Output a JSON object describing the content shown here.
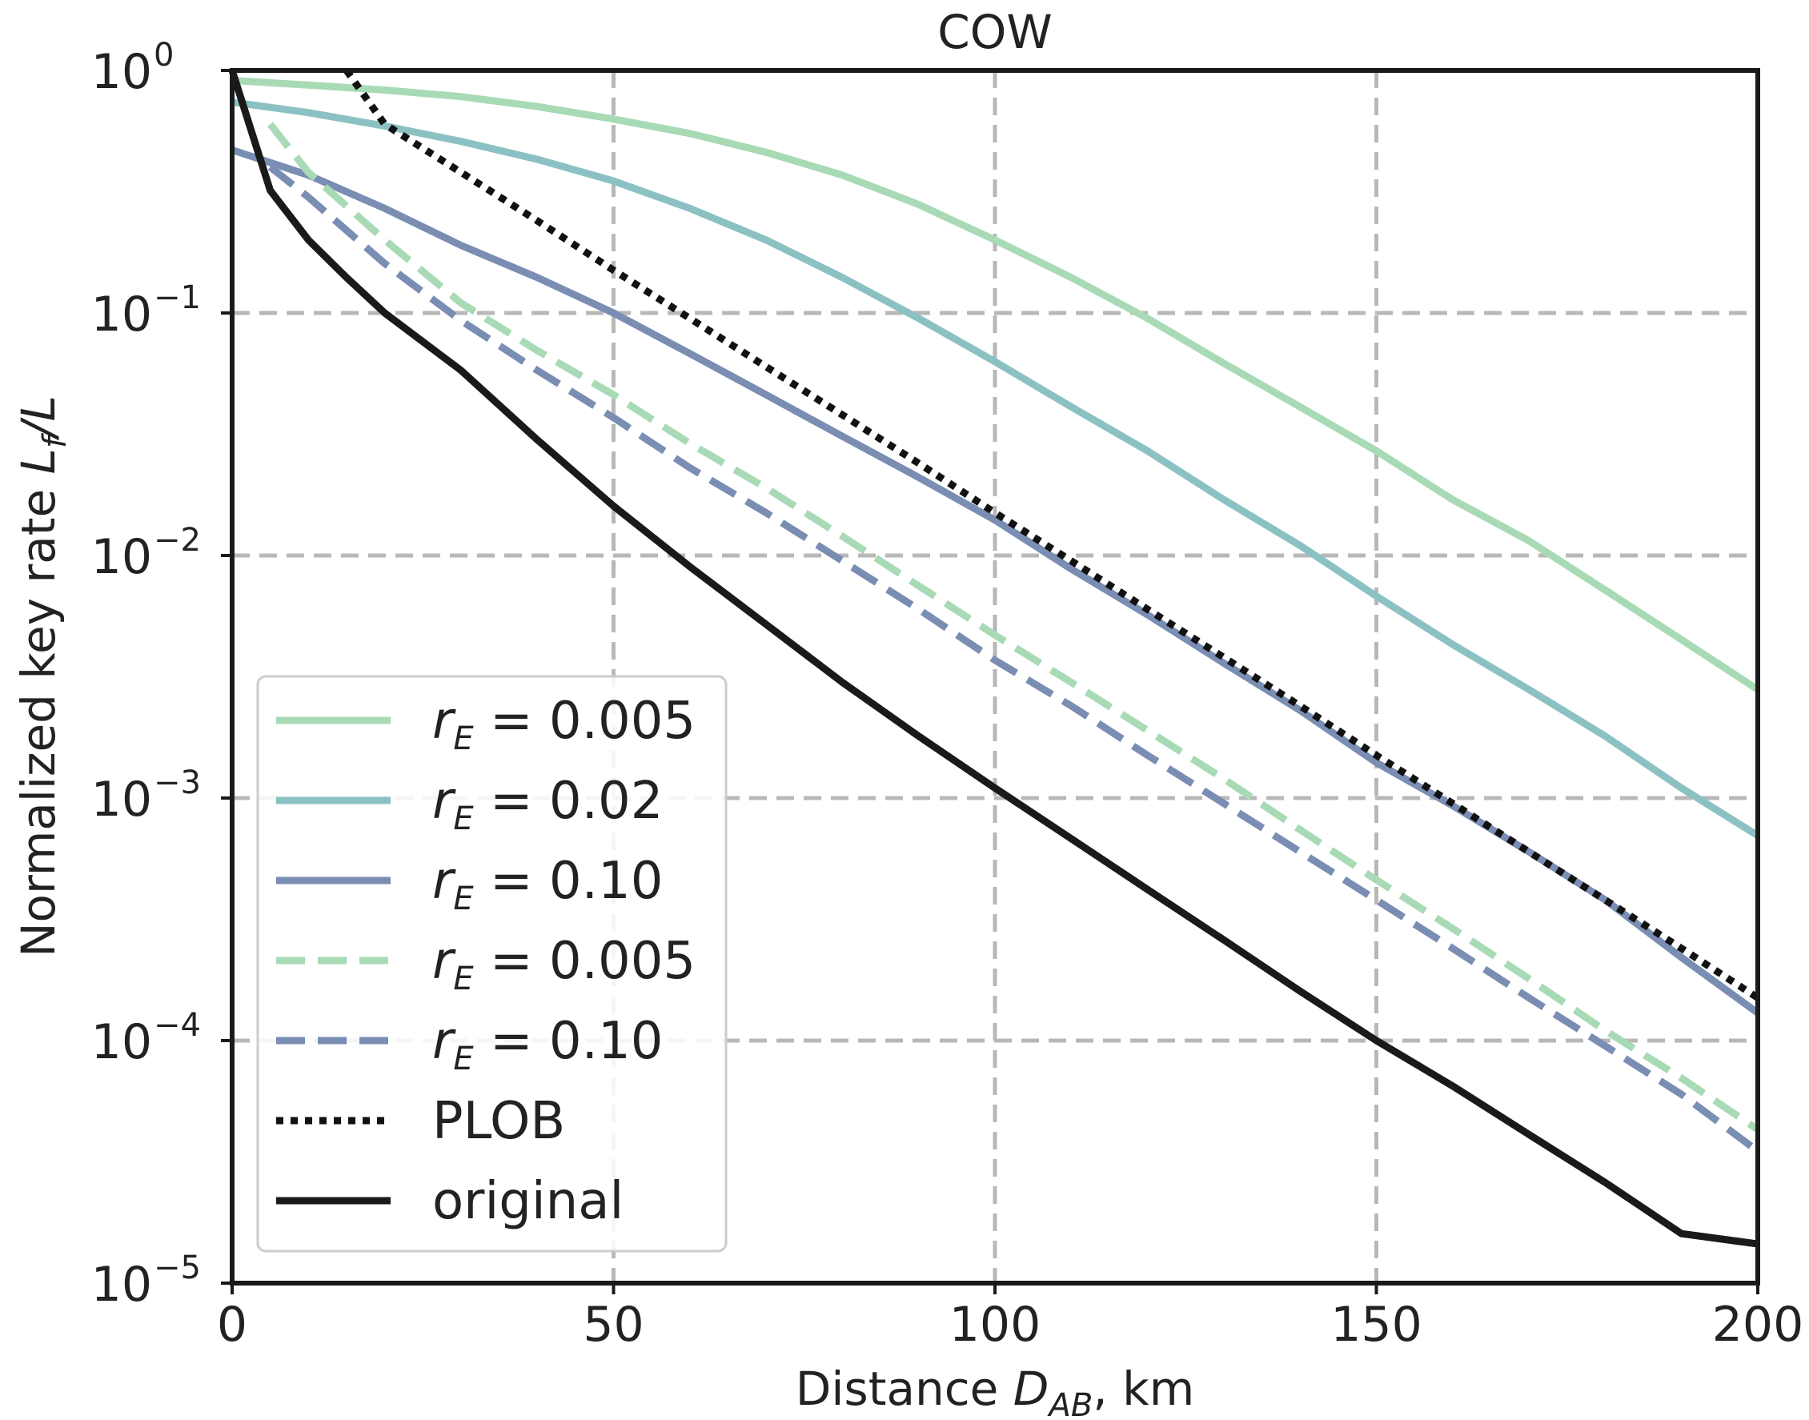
{
  "chart_data": {
    "type": "line",
    "title": "COW",
    "xlabel": {
      "text": "Distance ",
      "symbol": "D",
      "subscript": "AB",
      "suffix": ", km"
    },
    "ylabel": {
      "text": "Normalized key rate ",
      "symbol": "L",
      "subscript": "f",
      "suffix": "/L"
    },
    "xlim": [
      0,
      200
    ],
    "ylim": [
      1e-05,
      1
    ],
    "yscale": "log",
    "grid": true,
    "legend_position": "lower-left",
    "x_ticks": [
      {
        "value": 0,
        "label": "0"
      },
      {
        "value": 50,
        "label": "50"
      },
      {
        "value": 100,
        "label": "100"
      },
      {
        "value": 150,
        "label": "150"
      },
      {
        "value": 200,
        "label": "200"
      }
    ],
    "y_ticks": [
      {
        "value": 1,
        "base": "10",
        "exp": "0"
      },
      {
        "value": 0.1,
        "base": "10",
        "exp": "−1"
      },
      {
        "value": 0.01,
        "base": "10",
        "exp": "−2"
      },
      {
        "value": 0.001,
        "base": "10",
        "exp": "−3"
      },
      {
        "value": 0.0001,
        "base": "10",
        "exp": "−4"
      },
      {
        "value": 1e-05,
        "base": "10",
        "exp": "−5"
      }
    ],
    "series": [
      {
        "name": "r_E = 0.005 (solid)",
        "legend_symbol": "r",
        "legend_sub": "E",
        "legend_value": " = 0.005",
        "color": "#a8dab5",
        "style": "solid",
        "x": [
          0,
          10,
          20,
          30,
          40,
          50,
          60,
          70,
          80,
          90,
          100,
          110,
          120,
          130,
          140,
          150,
          160,
          170,
          180,
          190,
          200
        ],
        "y": [
          0.91,
          0.87,
          0.83,
          0.78,
          0.71,
          0.63,
          0.55,
          0.46,
          0.37,
          0.28,
          0.2,
          0.14,
          0.095,
          0.062,
          0.041,
          0.027,
          0.017,
          0.0115,
          0.0072,
          0.0045,
          0.0028
        ]
      },
      {
        "name": "r_E = 0.02 (solid)",
        "legend_symbol": "r",
        "legend_sub": "E",
        "legend_value": " = 0.02",
        "color": "#8cc1c3",
        "style": "solid",
        "x": [
          0,
          10,
          20,
          30,
          40,
          50,
          60,
          70,
          80,
          90,
          100,
          110,
          120,
          130,
          140,
          150,
          160,
          170,
          180,
          190,
          200
        ],
        "y": [
          0.74,
          0.67,
          0.59,
          0.51,
          0.43,
          0.35,
          0.27,
          0.2,
          0.14,
          0.095,
          0.063,
          0.041,
          0.027,
          0.017,
          0.011,
          0.0068,
          0.0043,
          0.0028,
          0.0018,
          0.0011,
          0.0007
        ]
      },
      {
        "name": "r_E = 0.10 (solid)",
        "legend_symbol": "r",
        "legend_sub": "E",
        "legend_value": " = 0.10",
        "color": "#7a8db3",
        "style": "solid",
        "x": [
          0,
          10,
          20,
          30,
          40,
          50,
          60,
          70,
          80,
          90,
          100,
          110,
          120,
          130,
          140,
          150,
          160,
          170,
          180,
          190,
          200
        ],
        "y": [
          0.47,
          0.37,
          0.27,
          0.19,
          0.14,
          0.1,
          0.068,
          0.046,
          0.031,
          0.021,
          0.014,
          0.0088,
          0.0057,
          0.0036,
          0.0023,
          0.0014,
          0.00093,
          0.0006,
          0.00038,
          0.00022,
          0.00013
        ]
      },
      {
        "name": "r_E = 0.005 (dashed)",
        "legend_symbol": "r",
        "legend_sub": "E",
        "legend_value": " = 0.005",
        "color": "#a8dab5",
        "style": "dashed",
        "x": [
          5,
          10,
          20,
          30,
          40,
          50,
          60,
          70,
          80,
          90,
          100,
          110,
          120,
          130,
          140,
          150,
          160,
          170,
          180,
          190,
          200
        ],
        "y": [
          0.6,
          0.38,
          0.2,
          0.11,
          0.07,
          0.046,
          0.029,
          0.019,
          0.012,
          0.0075,
          0.0047,
          0.003,
          0.0019,
          0.0012,
          0.00074,
          0.00046,
          0.00029,
          0.00018,
          0.00011,
          7e-05,
          4.3e-05
        ]
      },
      {
        "name": "r_E = 0.10 (dashed)",
        "legend_symbol": "r",
        "legend_sub": "E",
        "legend_value": " = 0.10",
        "color": "#7a8db3",
        "style": "dashed",
        "x": [
          5,
          10,
          20,
          30,
          40,
          50,
          60,
          70,
          80,
          90,
          100,
          110,
          120,
          130,
          140,
          150,
          160,
          170,
          180,
          190,
          200
        ],
        "y": [
          0.4,
          0.3,
          0.16,
          0.093,
          0.058,
          0.037,
          0.023,
          0.015,
          0.0095,
          0.006,
          0.0037,
          0.0024,
          0.0015,
          0.00095,
          0.0006,
          0.00038,
          0.00024,
          0.00015,
          9.5e-05,
          6e-05,
          3.5e-05
        ]
      },
      {
        "name": "PLOB",
        "legend_symbol": "",
        "legend_sub": "",
        "legend_value": "PLOB",
        "color": "#111111",
        "style": "dotted",
        "x": [
          15,
          20,
          30,
          40,
          50,
          60,
          70,
          80,
          90,
          100,
          110,
          120,
          130,
          140,
          150,
          160,
          170,
          180,
          190,
          200
        ],
        "y": [
          1.0,
          0.6,
          0.38,
          0.24,
          0.15,
          0.095,
          0.06,
          0.038,
          0.024,
          0.015,
          0.0095,
          0.006,
          0.0038,
          0.0024,
          0.0015,
          0.00095,
          0.0006,
          0.00038,
          0.00024,
          0.00015
        ]
      },
      {
        "name": "original",
        "legend_symbol": "",
        "legend_sub": "",
        "legend_value": "original",
        "color": "#1a1a1a",
        "style": "solid",
        "x": [
          0,
          5,
          10,
          15,
          20,
          30,
          40,
          50,
          60,
          70,
          80,
          90,
          100,
          110,
          120,
          130,
          140,
          150,
          160,
          170,
          180,
          190,
          200
        ],
        "y": [
          1.0,
          0.32,
          0.2,
          0.14,
          0.1,
          0.058,
          0.03,
          0.016,
          0.009,
          0.0052,
          0.003,
          0.0018,
          0.0011,
          0.00068,
          0.00042,
          0.00026,
          0.00016,
          0.0001,
          6.5e-05,
          4.1e-05,
          2.6e-05,
          1.6e-05,
          1.45e-05
        ]
      }
    ]
  }
}
